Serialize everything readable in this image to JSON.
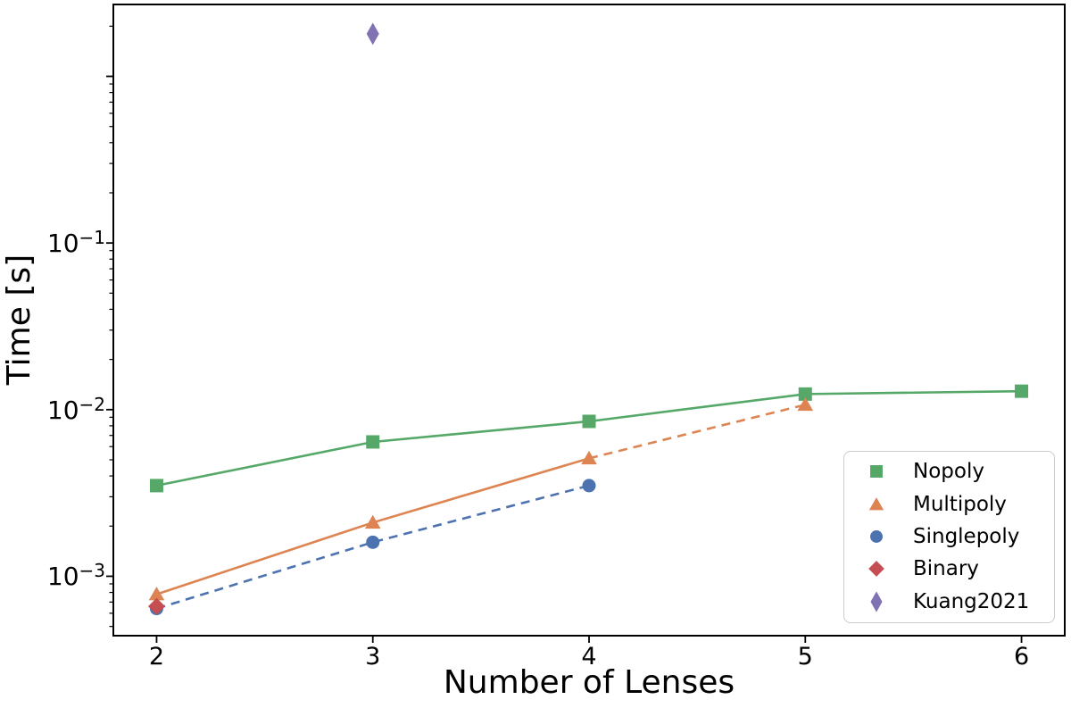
{
  "chart_data": {
    "type": "line",
    "title": "",
    "xlabel": "Number of Lenses",
    "ylabel": "Time [s]",
    "x_scale": "linear",
    "y_scale": "log",
    "xlim": [
      1.8,
      6.2
    ],
    "ylim": [
      0.00044,
      2.7
    ],
    "grid": false,
    "legend_position": "lower right",
    "x_ticks": [
      2,
      3,
      4,
      5,
      6
    ],
    "y_tick_labels": [
      {
        "value": 0.001,
        "base": "10",
        "exp": "−3"
      },
      {
        "value": 0.01,
        "base": "10",
        "exp": "−2"
      },
      {
        "value": 0.1,
        "base": "10",
        "exp": "−1"
      }
    ],
    "series": [
      {
        "name": "Nopoly",
        "color": "#55A868",
        "marker": "square",
        "x": [
          2,
          3,
          4,
          5,
          6
        ],
        "y": [
          0.0035,
          0.0064,
          0.0085,
          0.0124,
          0.0129
        ],
        "segments": [
          {
            "from": 0,
            "to": 4,
            "style": "solid"
          }
        ]
      },
      {
        "name": "Multipoly",
        "color": "#DD8452",
        "marker": "triangle-up",
        "x": [
          2,
          3,
          4,
          5
        ],
        "y": [
          0.00078,
          0.0021,
          0.0051,
          0.0107
        ],
        "segments": [
          {
            "from": 0,
            "to": 2,
            "style": "solid"
          },
          {
            "from": 2,
            "to": 3,
            "style": "dashed"
          }
        ]
      },
      {
        "name": "Singlepoly",
        "color": "#4C72B0",
        "marker": "circle",
        "x": [
          2,
          3,
          4
        ],
        "y": [
          0.00064,
          0.0016,
          0.0035
        ],
        "segments": [
          {
            "from": 0,
            "to": 2,
            "style": "dashed"
          }
        ]
      },
      {
        "name": "Binary",
        "color": "#C44E52",
        "marker": "diamond",
        "x": [
          2
        ],
        "y": [
          0.00066
        ],
        "segments": []
      },
      {
        "name": "Kuang2021",
        "color": "#8172B3",
        "marker": "thin-diamond",
        "x": [
          3
        ],
        "y": [
          1.8
        ],
        "segments": []
      }
    ]
  }
}
